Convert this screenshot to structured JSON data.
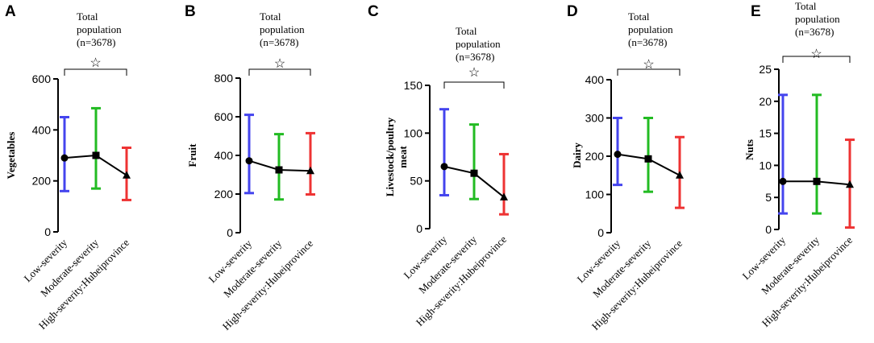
{
  "chart_data": [
    {
      "type": "line",
      "panel": "A",
      "annotation": [
        "Total",
        "population",
        "(n=3678)"
      ],
      "significance_marker": "☆",
      "categories": [
        "Low-severity",
        "Moderate-severity",
        "High-severity:Hubeiprovince"
      ],
      "ylabel": "Vegetables",
      "ylim": [
        0,
        600
      ],
      "yticks": [
        0,
        200,
        400,
        600
      ],
      "ytick_labels": [
        "0",
        "200",
        "400",
        "600"
      ],
      "values": [
        290,
        300,
        222
      ],
      "err_low": [
        160,
        170,
        125
      ],
      "err_high": [
        450,
        485,
        330
      ],
      "markers": [
        "circle",
        "square",
        "triangle"
      ],
      "colors": [
        "#4444ee",
        "#22bb22",
        "#ee3333"
      ]
    },
    {
      "type": "line",
      "panel": "B",
      "annotation": [
        "Total",
        "population",
        "(n=3678)"
      ],
      "significance_marker": "☆",
      "categories": [
        "Low-severity",
        "Moderate-severity",
        "High-severity:Hubeiprovince"
      ],
      "ylabel": "Fruit",
      "ylim": [
        0,
        800
      ],
      "yticks": [
        0,
        200,
        400,
        600,
        800
      ],
      "ytick_labels": [
        "0",
        "200",
        "400",
        "600",
        "800"
      ],
      "values": [
        372,
        325,
        320
      ],
      "err_low": [
        205,
        172,
        198
      ],
      "err_high": [
        610,
        510,
        515
      ],
      "markers": [
        "circle",
        "square",
        "triangle"
      ],
      "colors": [
        "#4444ee",
        "#22bb22",
        "#ee3333"
      ]
    },
    {
      "type": "line",
      "panel": "C",
      "annotation": [
        "Total",
        "population",
        "(n=3678)"
      ],
      "significance_marker": "☆",
      "categories": [
        "Low-severity",
        "Moderate-severity",
        "High-severity:Hubeiprovince"
      ],
      "ylabel": [
        "Livestock/poultry",
        "meat"
      ],
      "ylim": [
        0,
        150
      ],
      "yticks": [
        0,
        50,
        100,
        150
      ],
      "ytick_labels": [
        "0",
        "50",
        "100",
        "150"
      ],
      "values": [
        65,
        58,
        33
      ],
      "err_low": [
        35,
        31,
        15
      ],
      "err_high": [
        125,
        109,
        78
      ],
      "markers": [
        "circle",
        "square",
        "triangle"
      ],
      "colors": [
        "#4444ee",
        "#22bb22",
        "#ee3333"
      ]
    },
    {
      "type": "line",
      "panel": "D",
      "annotation": [
        "Total",
        "population",
        "(n=3678)"
      ],
      "significance_marker": "☆",
      "categories": [
        "Low-severity",
        "Moderate-severity",
        "High-severity:Hubeiprovince"
      ],
      "ylabel": "Dairy",
      "ylim": [
        0,
        400
      ],
      "yticks": [
        0,
        100,
        200,
        300,
        400
      ],
      "ytick_labels": [
        "0",
        "100",
        "200",
        "300",
        "400"
      ],
      "values": [
        205,
        193,
        150
      ],
      "err_low": [
        125,
        107,
        65
      ],
      "err_high": [
        300,
        300,
        250
      ],
      "markers": [
        "circle",
        "square",
        "triangle"
      ],
      "colors": [
        "#4444ee",
        "#22bb22",
        "#ee3333"
      ]
    },
    {
      "type": "line",
      "panel": "E",
      "annotation": [
        "Total",
        "population",
        "(n=3678)"
      ],
      "significance_marker": "☆",
      "categories": [
        "Low-severity",
        "Moderate-severity",
        "High-severity:Hubeiprovince"
      ],
      "ylabel": "Nuts",
      "ylim": [
        0,
        25
      ],
      "yticks": [
        0,
        5,
        10,
        15,
        20,
        25
      ],
      "ytick_labels": [
        "0",
        "5",
        "10",
        "15",
        "20",
        "25"
      ],
      "values": [
        7.5,
        7.5,
        7.0
      ],
      "err_low": [
        2.5,
        2.5,
        0.3
      ],
      "err_high": [
        21,
        21,
        14
      ],
      "markers": [
        "circle",
        "square",
        "triangle"
      ],
      "colors": [
        "#4444ee",
        "#22bb22",
        "#ee3333"
      ]
    }
  ]
}
